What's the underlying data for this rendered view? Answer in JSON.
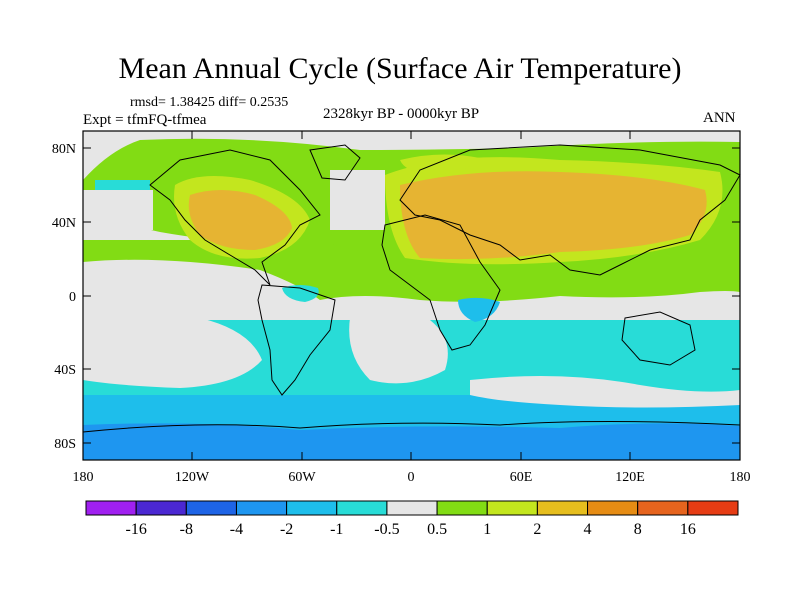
{
  "title": "Mean Annual Cycle (Surface Air Temperature)",
  "stats": "rmsd= 1.38425 diff= 0.2535",
  "experiment": "Expt = tfmFQ-tfmea",
  "period": "2328kyr BP - 0000kyr BP",
  "season": "ANN",
  "lat_ticks": [
    "80N",
    "40N",
    "0",
    "40S",
    "80S"
  ],
  "lon_ticks": [
    "180",
    "120W",
    "60W",
    "0",
    "60E",
    "120E",
    "180"
  ],
  "colorbar": {
    "labels": [
      "-16",
      "-8",
      "-4",
      "-2",
      "-1",
      "-0.5",
      "0.5",
      "1",
      "2",
      "4",
      "8",
      "16"
    ],
    "colors": [
      "#a020f0",
      "#4b28d2",
      "#1e64e6",
      "#1e96f0",
      "#1ebeeb",
      "#28dcd7",
      "#e6e6e6",
      "#82dc14",
      "#c3e61e",
      "#e6be1e",
      "#e68c14",
      "#e6641e",
      "#e63c14"
    ]
  },
  "map_colors": {
    "neutral": "#e6e6e6",
    "light_warm": "#82dc14",
    "mid_warm": "#c3e61e",
    "warm": "#e6b432",
    "cool": "#28dcd7",
    "cooler": "#1ebeeb",
    "cold": "#1e96f0"
  }
}
